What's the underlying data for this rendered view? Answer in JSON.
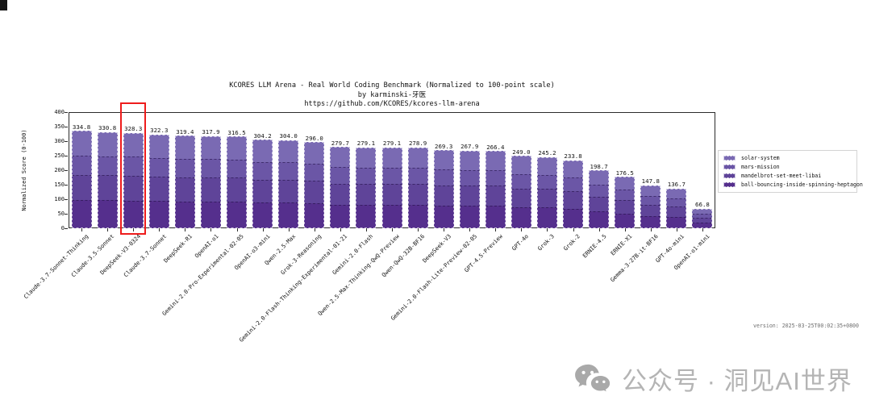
{
  "header": {
    "title": "KCORES LLM Arena - Real World Coding Benchmark (Normalized to 100-point scale)",
    "subtitle": "by karminski-牙医",
    "source_url": "https://github.com/KCORES/kcores-llm-arena"
  },
  "chart_data": {
    "type": "bar",
    "stacked": true,
    "title": "KCORES LLM Arena - Real World Coding Benchmark (Normalized to 100-point scale)",
    "xlabel": "",
    "ylabel": "Normalized Score (0-100)",
    "ylim": [
      0,
      400
    ],
    "yticks": [
      0,
      50,
      100,
      150,
      200,
      250,
      300,
      350,
      400
    ],
    "grid": false,
    "legend_position": "right-of-plot",
    "series": [
      {
        "name": "solar-system",
        "color": "#7a6ab3"
      },
      {
        "name": "mars-mission",
        "color": "#6b56a6"
      },
      {
        "name": "mandelbrot-set-meet-libai",
        "color": "#5f4499"
      },
      {
        "name": "ball-bouncing-inside-spinning-heptagon",
        "color": "#552f8d"
      }
    ],
    "stack_order_bottom_to_top": [
      "ball-bouncing-inside-spinning-heptagon",
      "mandelbrot-set-meet-libai",
      "mars-mission",
      "solar-system"
    ],
    "estimated_segment_fractions_bottom_to_top": [
      0.29,
      0.26,
      0.2,
      0.25
    ],
    "categories": [
      "Claude-3.7-Sonnet-Thinking",
      "Claude-3.5-Sonnet",
      "DeepSeek-V3-0324",
      "Claude-3.7-Sonnet",
      "DeepSeek-R1",
      "OpenAI-o1",
      "Gemini-2.0-Pro-Experimental-02-05",
      "OpenAI-o3-mini",
      "Qwen-2.5-Max",
      "Grok-3-Reasoning",
      "Gemini-2.0-Flash-Thinking-Experimental-01-21",
      "Gemini-2.0-Flash",
      "Qwen-2.5-Max-Thinking-QwQ-Preview",
      "Qwen-QwQ-32B-BF16",
      "DeepSeek-V3",
      "Gemini-2.0-Flash-Lite-Preview-02-05",
      "GPT-4.5-Preview",
      "GPT-4o",
      "Grok-3",
      "Grok-2",
      "ERNIE-4.5",
      "ERNIE-X1",
      "Gemma-3-27B-it-BF16",
      "GPT-4o-mini",
      "OpenAI-o1-mini"
    ],
    "totals": [
      334.8,
      330.8,
      328.3,
      322.3,
      319.4,
      317.9,
      316.5,
      304.2,
      304.0,
      296.0,
      279.7,
      279.1,
      279.1,
      278.9,
      269.3,
      267.9,
      266.4,
      249.0,
      245.2,
      233.8,
      198.7,
      176.5,
      147.8,
      136.7,
      66.8
    ],
    "highlight": {
      "model": "DeepSeek-V3-0324",
      "index": 2,
      "box_color": "#ee1c1c"
    }
  },
  "footer": {
    "version_text": "version: 2025-03-25T00:02:35+0800"
  },
  "watermark": {
    "icon": "wechat-icon",
    "text": "公众号 · 洞见AI世界"
  }
}
